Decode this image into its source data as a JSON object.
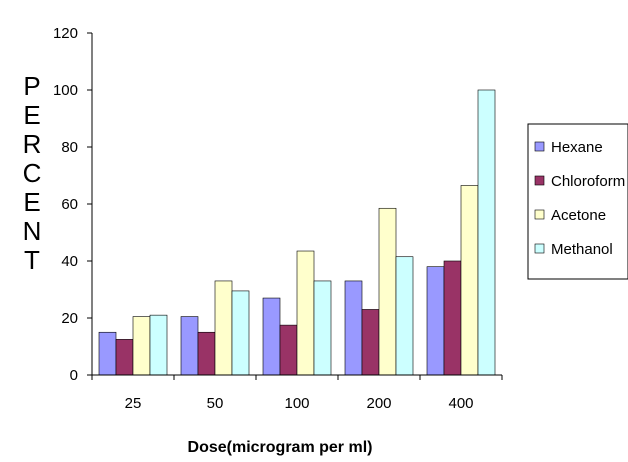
{
  "chart_data": {
    "type": "bar",
    "title": "",
    "xlabel": "Dose(microgram per ml)",
    "ylabel": "PERCENT",
    "categories": [
      "25",
      "50",
      "100",
      "200",
      "400"
    ],
    "ylim": [
      0,
      120
    ],
    "yticks": [
      "0",
      "20",
      "40",
      "60",
      "80",
      "100",
      "120"
    ],
    "grid": false,
    "legend_position": "right",
    "series": [
      {
        "name": "Hexane",
        "color": "#9999ff",
        "values": [
          15,
          20.5,
          27,
          33,
          38
        ]
      },
      {
        "name": "Chloroform",
        "color": "#993366",
        "values": [
          12.5,
          15,
          17.5,
          23,
          40
        ]
      },
      {
        "name": "Acetone",
        "color": "#ffffcc",
        "values": [
          20.5,
          33,
          43.5,
          58.5,
          66.5
        ]
      },
      {
        "name": "Methanol",
        "color": "#ccffff",
        "values": [
          21,
          29.5,
          33,
          41.5,
          100
        ]
      }
    ]
  }
}
